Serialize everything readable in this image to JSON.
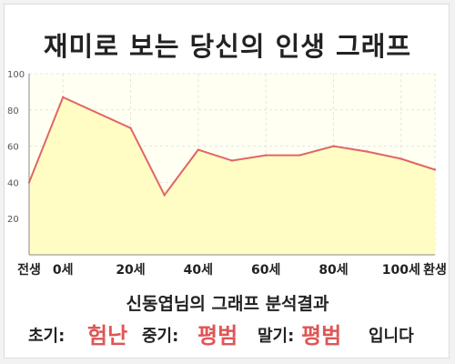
{
  "title": "재미로 보는 당신의 인생 그래프",
  "chart_data": {
    "type": "area",
    "x": [
      -10,
      0,
      20,
      30,
      40,
      50,
      60,
      70,
      80,
      90,
      100,
      110
    ],
    "values": [
      40,
      87,
      70,
      33,
      58,
      52,
      55,
      55,
      60,
      57,
      53,
      47
    ],
    "xlim": [
      -10,
      110
    ],
    "ylim": [
      0,
      100
    ],
    "yticks": [
      20,
      40,
      60,
      80,
      100
    ],
    "xtick_labels": [
      {
        "x": -10,
        "label": "전생"
      },
      {
        "x": 0,
        "label": "0세"
      },
      {
        "x": 20,
        "label": "20세"
      },
      {
        "x": 40,
        "label": "40세"
      },
      {
        "x": 60,
        "label": "60세"
      },
      {
        "x": 80,
        "label": "80세"
      },
      {
        "x": 100,
        "label": "100세"
      },
      {
        "x": 110,
        "label": "환생"
      }
    ],
    "grid": true,
    "line_color": "#e06666",
    "fill_color": "#fffdc4"
  },
  "result": {
    "heading": "신동엽님의 그래프 분석결과",
    "early_label": "초기:",
    "early_value": "험난",
    "middle_label": "중기:",
    "middle_value": "평범",
    "late_label": "말기:",
    "late_value": "평범",
    "ending": "입니다"
  }
}
